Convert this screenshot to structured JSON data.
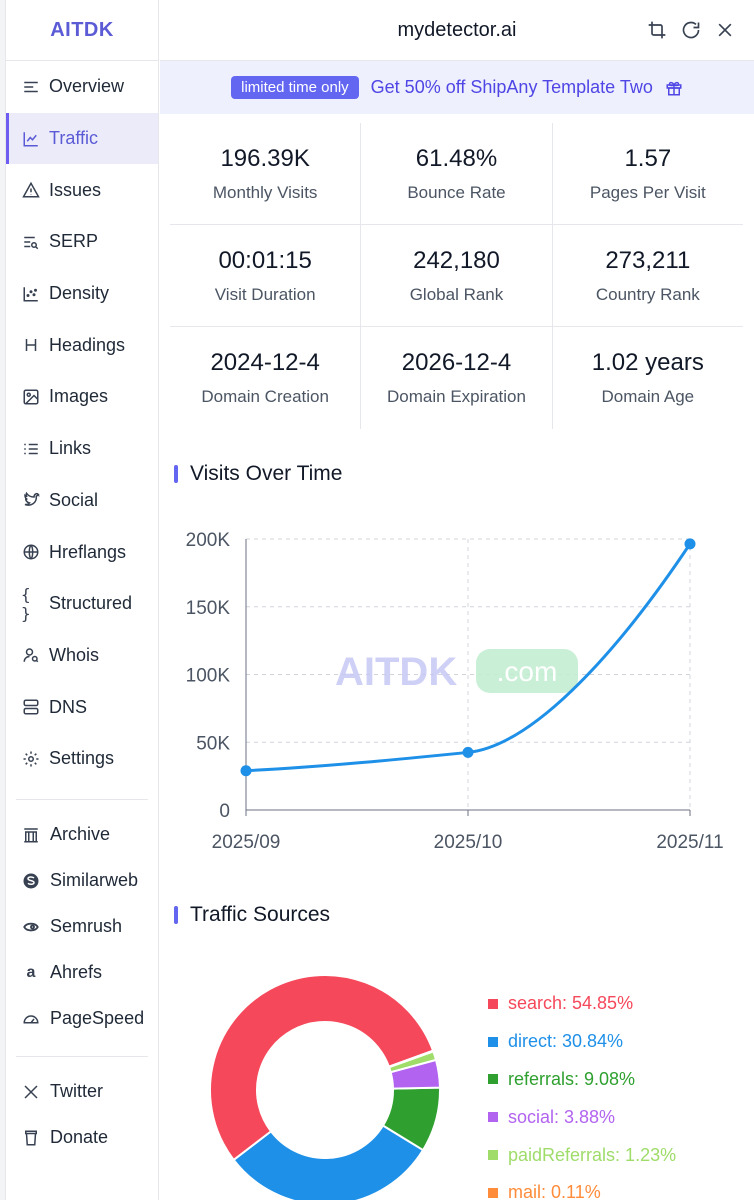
{
  "app": {
    "brand": "AITDK",
    "site": "mydetector.ai"
  },
  "topbar": {
    "icons": [
      "crop-icon",
      "refresh-icon",
      "close-icon"
    ]
  },
  "sidebar": {
    "items": [
      {
        "label": "Overview",
        "icon": "list-icon"
      },
      {
        "label": "Traffic",
        "icon": "line-chart-icon",
        "active": true
      },
      {
        "label": "Issues",
        "icon": "warning-icon"
      },
      {
        "label": "SERP",
        "icon": "serp-icon"
      },
      {
        "label": "Density",
        "icon": "scatter-icon"
      },
      {
        "label": "Headings",
        "icon": "heading-icon"
      },
      {
        "label": "Images",
        "icon": "image-icon"
      },
      {
        "label": "Links",
        "icon": "links-icon"
      },
      {
        "label": "Social",
        "icon": "twitter-bird-icon"
      },
      {
        "label": "Hreflangs",
        "icon": "globe-icon"
      },
      {
        "label": "Structured",
        "icon": "braces-icon"
      },
      {
        "label": "Whois",
        "icon": "user-search-icon"
      },
      {
        "label": "DNS",
        "icon": "server-icon"
      },
      {
        "label": "Settings",
        "icon": "gear-icon"
      }
    ],
    "external": [
      {
        "label": "Archive",
        "icon": "archive-icon"
      },
      {
        "label": "Similarweb",
        "icon": "similarweb-icon"
      },
      {
        "label": "Semrush",
        "icon": "semrush-icon"
      },
      {
        "label": "Ahrefs",
        "icon": "ahrefs-icon"
      },
      {
        "label": "PageSpeed",
        "icon": "speedometer-icon"
      }
    ],
    "footer": [
      {
        "label": "Twitter",
        "icon": "x-logo-icon"
      },
      {
        "label": "Donate",
        "icon": "cup-icon"
      }
    ]
  },
  "promo": {
    "badge": "limited time only",
    "text": "Get 50% off ShipAny Template Two"
  },
  "stats": [
    [
      {
        "value": "196.39K",
        "label": "Monthly Visits"
      },
      {
        "value": "61.48%",
        "label": "Bounce Rate"
      },
      {
        "value": "1.57",
        "label": "Pages Per Visit"
      }
    ],
    [
      {
        "value": "00:01:15",
        "label": "Visit Duration"
      },
      {
        "value": "242,180",
        "label": "Global Rank"
      },
      {
        "value": "273,211",
        "label": "Country Rank"
      }
    ],
    [
      {
        "value": "2024-12-4",
        "label": "Domain Creation"
      },
      {
        "value": "2026-12-4",
        "label": "Domain Expiration"
      },
      {
        "value": "1.02 years",
        "label": "Domain Age"
      }
    ]
  ],
  "sections": {
    "visits_title": "Visits Over Time",
    "sources_title": "Traffic Sources"
  },
  "watermark": {
    "main": "AITDK",
    "suffix": ".com"
  },
  "chart_data": [
    {
      "type": "line",
      "title": "Visits Over Time",
      "x": [
        "2025/09",
        "2025/10",
        "2025/11"
      ],
      "values": [
        29000,
        42500,
        196390
      ],
      "ylim": [
        0,
        200000
      ],
      "yticks": [
        "0",
        "50K",
        "100K",
        "150K",
        "200K"
      ],
      "grid": true,
      "color": "#1e90e8"
    },
    {
      "type": "pie",
      "title": "Traffic Sources",
      "slices": [
        {
          "label": "search",
          "value": 54.85,
          "display": "search: 54.85%",
          "color": "#f5485a"
        },
        {
          "label": "direct",
          "value": 30.84,
          "display": "direct: 30.84%",
          "color": "#1e90e8"
        },
        {
          "label": "referrals",
          "value": 9.08,
          "display": "referrals: 9.08%",
          "color": "#2fa02f"
        },
        {
          "label": "social",
          "value": 3.88,
          "display": "social: 3.88%",
          "color": "#b264f0"
        },
        {
          "label": "paidReferrals",
          "value": 1.23,
          "display": "paidReferrals: 1.23%",
          "color": "#9fdc6a"
        },
        {
          "label": "mail",
          "value": 0.11,
          "display": "mail: 0.11%",
          "color": "#ff8c3a"
        }
      ],
      "legend": "right"
    }
  ]
}
